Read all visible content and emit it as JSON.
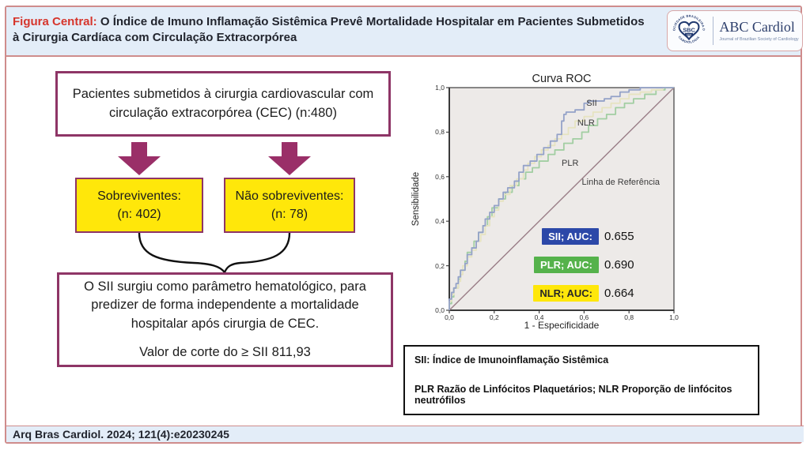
{
  "header": {
    "figure_label": "Figura Central:",
    "title": "O Índice de Imuno Inflamação Sistêmica Prevê Mortalidade Hospitalar em Pacientes Submetidos à Cirurgia Cardíaca com Circulação Extracorpórea",
    "logo": {
      "ring_top": "SOCIEDADE BRASILEIRA DE",
      "ring_bottom": "CARDIOLOGIA",
      "acronym": "SBC",
      "year": "1943",
      "journal_name": "ABC Cardiol",
      "journal_subtitle": "Journal of Brazilian Society of Cardiology"
    }
  },
  "flowchart": {
    "patients_box": "Pacientes submetidos à cirurgia cardiovascular com circulação extracorpórea (CEC) (n:480)",
    "survivors": {
      "line1": "Sobreviventes:",
      "line2": "(n: 402)"
    },
    "nonsurvivors": {
      "line1": "Não sobreviventes:",
      "line2": "(n: 78)"
    },
    "conclusion": "O SII surgiu como parâmetro hematológico, para predizer de forma independente a mortalidade hospitalar após cirurgia de CEC.",
    "cutoff": "Valor de corte do ≥ SII 811,93"
  },
  "chart_data": {
    "type": "line",
    "title": "Curva ROC",
    "xlabel": "1 - Especificidade",
    "ylabel": "Sensibilidade",
    "xlim": [
      0,
      1
    ],
    "ylim": [
      0,
      1
    ],
    "xtick_labels": [
      "0,0",
      "0,2",
      "0,4",
      "0,6",
      "0,8",
      "1,0"
    ],
    "ytick_labels": [
      "0,0",
      "0,2",
      "0,4",
      "0,6",
      "0,8",
      "1,0"
    ],
    "plot_bg": "#edeae8",
    "frame_color": "#4a4a4a",
    "series": [
      {
        "name": "Linha de Referência",
        "role": "reference",
        "color": "#9a7e87",
        "width": 1.4,
        "points": [
          [
            0,
            0
          ],
          [
            1,
            1
          ]
        ]
      },
      {
        "name": "PLR",
        "auc": 0.69,
        "color": "#a2cea2",
        "width": 1.8,
        "points": [
          [
            0,
            0
          ],
          [
            0.01,
            0.03
          ],
          [
            0.02,
            0.06
          ],
          [
            0.04,
            0.1
          ],
          [
            0.05,
            0.14
          ],
          [
            0.07,
            0.18
          ],
          [
            0.08,
            0.22
          ],
          [
            0.1,
            0.26
          ],
          [
            0.11,
            0.28
          ],
          [
            0.13,
            0.31
          ],
          [
            0.15,
            0.35
          ],
          [
            0.17,
            0.38
          ],
          [
            0.19,
            0.42
          ],
          [
            0.22,
            0.46
          ],
          [
            0.25,
            0.5
          ],
          [
            0.28,
            0.53
          ],
          [
            0.31,
            0.56
          ],
          [
            0.34,
            0.59
          ],
          [
            0.37,
            0.62
          ],
          [
            0.4,
            0.64
          ],
          [
            0.44,
            0.67
          ],
          [
            0.47,
            0.7
          ],
          [
            0.51,
            0.72
          ],
          [
            0.55,
            0.75
          ],
          [
            0.59,
            0.77
          ],
          [
            0.62,
            0.8
          ],
          [
            0.66,
            0.83
          ],
          [
            0.7,
            0.86
          ],
          [
            0.74,
            0.88
          ],
          [
            0.78,
            0.91
          ],
          [
            0.82,
            0.93
          ],
          [
            0.87,
            0.95
          ],
          [
            0.92,
            0.97
          ],
          [
            0.96,
            0.99
          ],
          [
            1,
            1
          ]
        ]
      },
      {
        "name": "NLR",
        "auc": 0.664,
        "color": "#e6e3c0",
        "width": 1.8,
        "points": [
          [
            0,
            0
          ],
          [
            0.01,
            0.04
          ],
          [
            0.02,
            0.07
          ],
          [
            0.04,
            0.1
          ],
          [
            0.05,
            0.13
          ],
          [
            0.06,
            0.16
          ],
          [
            0.08,
            0.2
          ],
          [
            0.1,
            0.24
          ],
          [
            0.12,
            0.27
          ],
          [
            0.14,
            0.31
          ],
          [
            0.16,
            0.34
          ],
          [
            0.18,
            0.38
          ],
          [
            0.2,
            0.42
          ],
          [
            0.22,
            0.45
          ],
          [
            0.24,
            0.49
          ],
          [
            0.27,
            0.52
          ],
          [
            0.3,
            0.56
          ],
          [
            0.33,
            0.59
          ],
          [
            0.35,
            0.63
          ],
          [
            0.38,
            0.66
          ],
          [
            0.41,
            0.69
          ],
          [
            0.44,
            0.72
          ],
          [
            0.47,
            0.74
          ],
          [
            0.5,
            0.77
          ],
          [
            0.53,
            0.79
          ],
          [
            0.56,
            0.82
          ],
          [
            0.6,
            0.85
          ],
          [
            0.64,
            0.87
          ],
          [
            0.68,
            0.89
          ],
          [
            0.72,
            0.91
          ],
          [
            0.76,
            0.93
          ],
          [
            0.8,
            0.95
          ],
          [
            0.85,
            0.97
          ],
          [
            0.9,
            0.98
          ],
          [
            0.95,
            0.99
          ],
          [
            1,
            1
          ]
        ]
      },
      {
        "name": "SII",
        "auc": 0.655,
        "color": "#94a2c8",
        "width": 1.8,
        "points": [
          [
            0,
            0
          ],
          [
            0.01,
            0.05
          ],
          [
            0.02,
            0.08
          ],
          [
            0.03,
            0.1
          ],
          [
            0.04,
            0.12
          ],
          [
            0.05,
            0.15
          ],
          [
            0.07,
            0.18
          ],
          [
            0.08,
            0.21
          ],
          [
            0.1,
            0.25
          ],
          [
            0.12,
            0.28
          ],
          [
            0.13,
            0.31
          ],
          [
            0.15,
            0.35
          ],
          [
            0.16,
            0.38
          ],
          [
            0.18,
            0.41
          ],
          [
            0.2,
            0.44
          ],
          [
            0.22,
            0.47
          ],
          [
            0.24,
            0.5
          ],
          [
            0.26,
            0.53
          ],
          [
            0.29,
            0.55
          ],
          [
            0.31,
            0.58
          ],
          [
            0.33,
            0.62
          ],
          [
            0.36,
            0.65
          ],
          [
            0.39,
            0.67
          ],
          [
            0.42,
            0.7
          ],
          [
            0.45,
            0.73
          ],
          [
            0.48,
            0.76
          ],
          [
            0.5,
            0.79
          ],
          [
            0.51,
            0.85
          ],
          [
            0.52,
            0.88
          ],
          [
            0.56,
            0.89
          ],
          [
            0.6,
            0.9
          ],
          [
            0.62,
            0.93
          ],
          [
            0.69,
            0.94
          ],
          [
            0.72,
            0.95
          ],
          [
            0.76,
            0.96
          ],
          [
            0.8,
            0.98
          ],
          [
            0.85,
            0.99
          ],
          [
            0.9,
            1.0
          ],
          [
            1,
            1
          ]
        ]
      }
    ],
    "annotations": [
      {
        "text": "SII",
        "x": 0.61,
        "y": 0.93
      },
      {
        "text": "NLR",
        "x": 0.57,
        "y": 0.84
      },
      {
        "text": "PLR",
        "x": 0.5,
        "y": 0.66
      },
      {
        "text": "Linha de Referência",
        "x": 0.59,
        "y": 0.575
      }
    ],
    "legend": [
      {
        "label": "SII; AUC:",
        "value": "0.655",
        "bg": "#2c48a8",
        "fg": "#ffffff"
      },
      {
        "label": "PLR; AUC:",
        "value": "0.690",
        "bg": "#55b24b",
        "fg": "#ffffff"
      },
      {
        "label": "NLR; AUC:",
        "value": "0.664",
        "bg": "#ffe70a",
        "fg": "#272727"
      }
    ]
  },
  "footnote": {
    "line1": "SII: Índice de Imunoinflamação Sistêmica",
    "line2": "PLR Razão de Linfócitos Plaquetários; NLR Proporção de linfócitos neutrófilos"
  },
  "footer": {
    "citation": "Arq Bras Cardiol. 2024; 121(4):e20230245"
  }
}
